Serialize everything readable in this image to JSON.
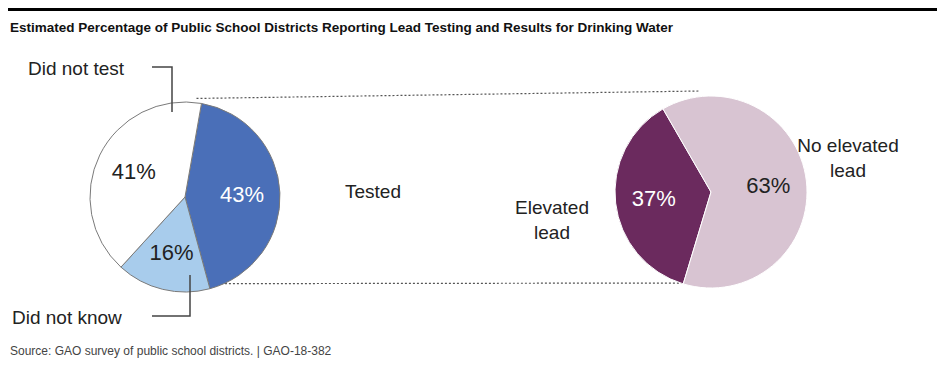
{
  "chart_data": [
    {
      "type": "pie",
      "title": "Estimated Percentage of Public School Districts Reporting Lead Testing and Results for Drinking Water",
      "categories": [
        "Tested",
        "Did not know",
        "Did not test"
      ],
      "values": [
        43,
        16,
        41
      ],
      "value_labels": [
        "43%",
        "16%",
        "41%"
      ],
      "colors": [
        "#4a6fb8",
        "#a8ccec",
        "#ffffff"
      ],
      "data_labels": true,
      "annotations": [
        "Source: GAO survey of public school districts. | GAO-18-382"
      ]
    },
    {
      "type": "pie",
      "categories": [
        "Elevated lead",
        "No elevated lead"
      ],
      "values": [
        37,
        63
      ],
      "value_labels": [
        "37%",
        "63%"
      ],
      "colors": [
        "#6b2a5e",
        "#d8c4d2"
      ],
      "data_labels": true
    }
  ]
}
